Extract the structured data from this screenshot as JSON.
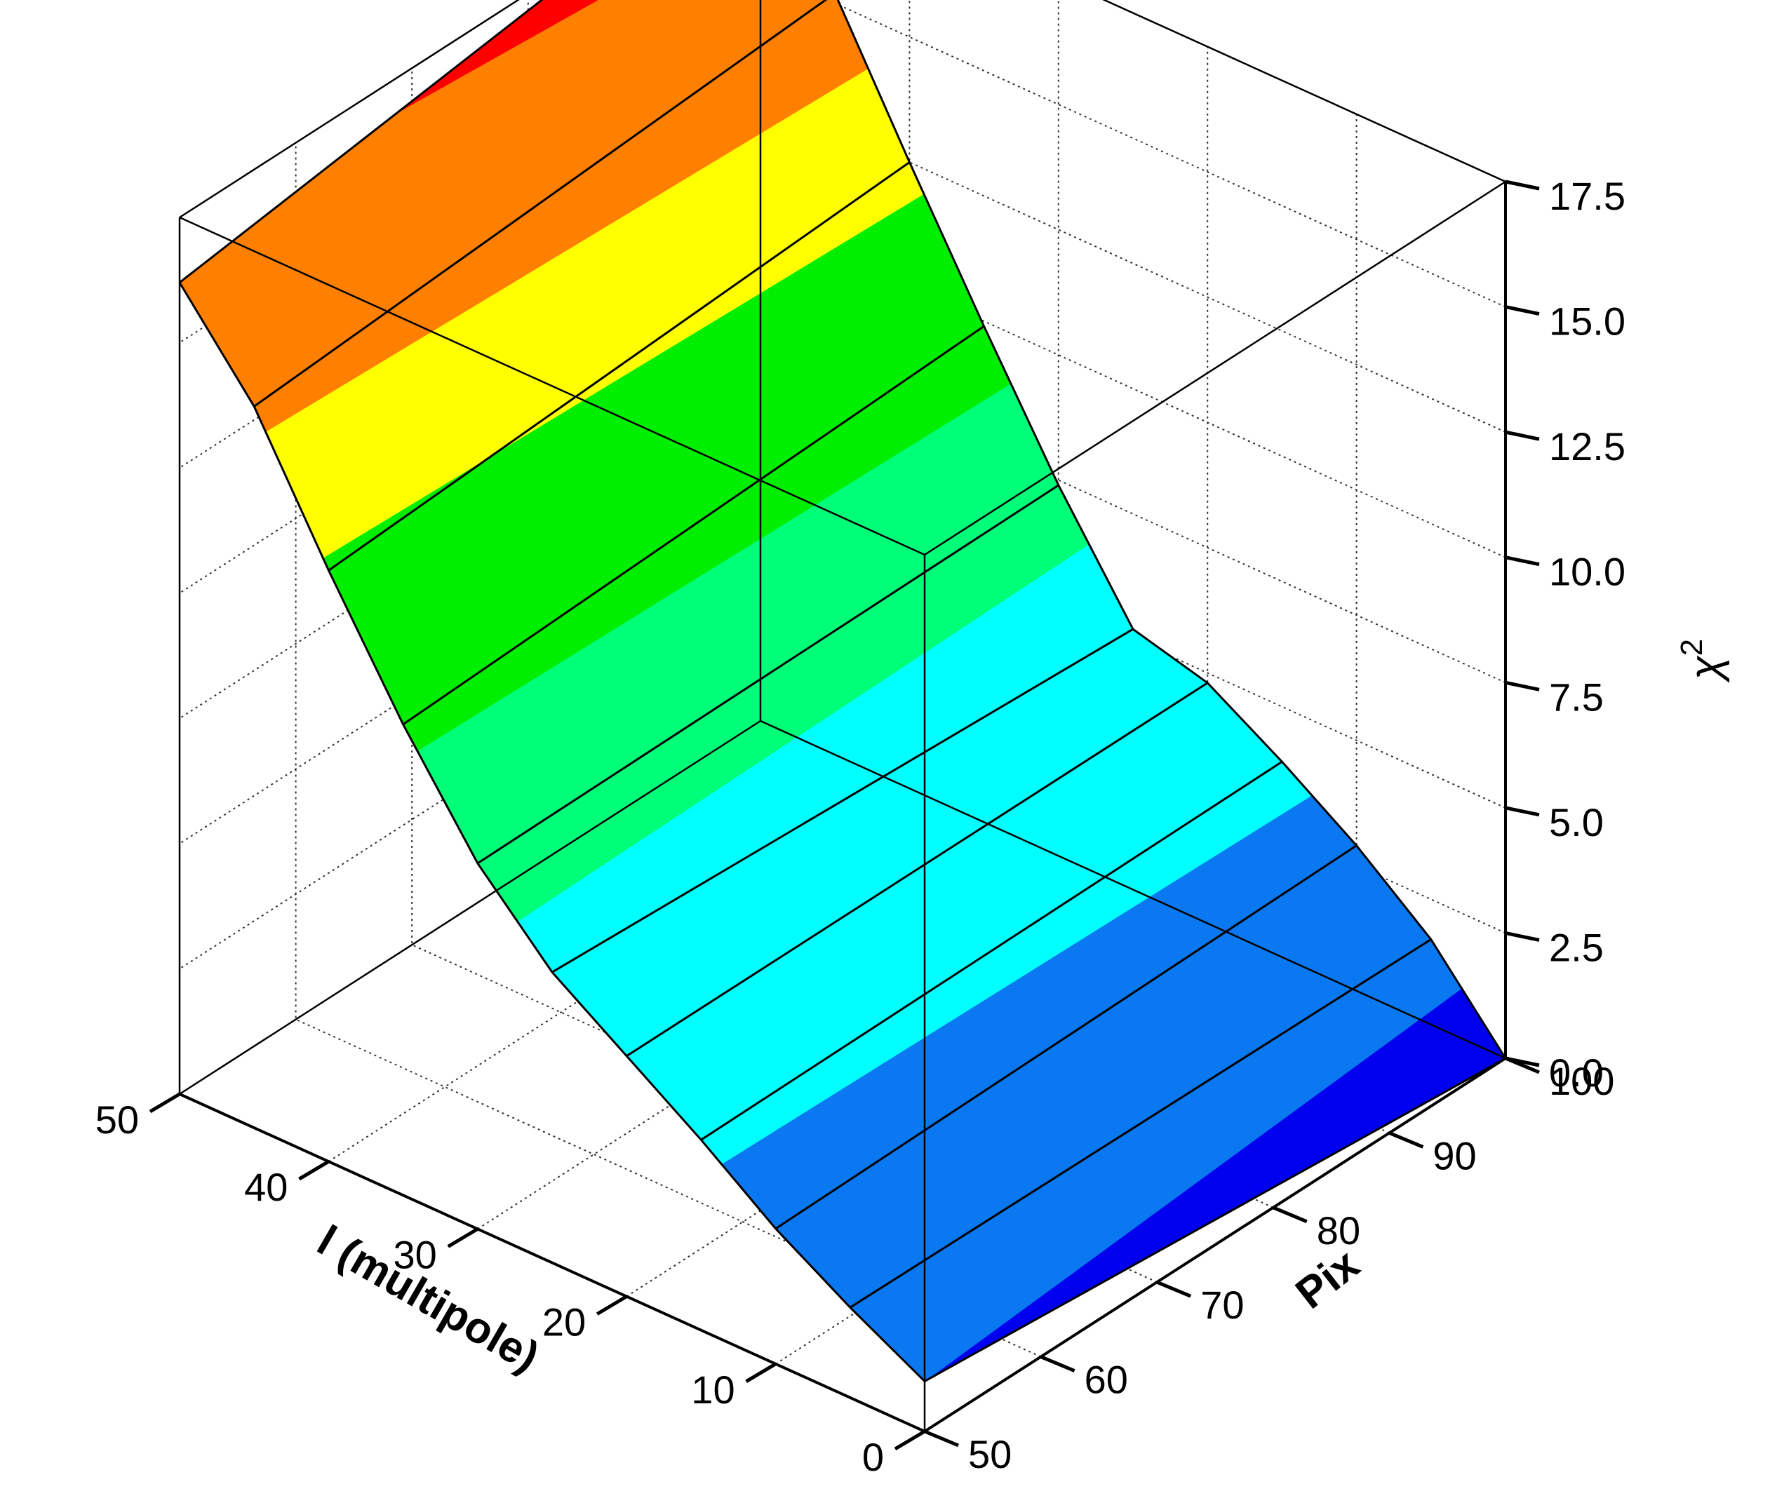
{
  "chart_data": {
    "type": "surface",
    "x": {
      "label": "l (multipole)",
      "ticks": [
        0,
        10,
        20,
        30,
        40,
        50
      ],
      "range": [
        0,
        50
      ]
    },
    "y": {
      "label": "Pix",
      "ticks": [
        50,
        60,
        70,
        80,
        90,
        100
      ],
      "range": [
        50,
        100
      ]
    },
    "z": {
      "label": "χ",
      "label_superscript": "2",
      "ticks": [
        "0.0",
        "2.5",
        "5.0",
        "7.5",
        "10.0",
        "12.5",
        "15.0",
        "17.5"
      ],
      "tick_values": [
        0,
        2.5,
        5,
        7.5,
        10,
        12.5,
        15,
        17.5
      ],
      "range": [
        0,
        17.5
      ]
    },
    "grid": true,
    "surface_x": [
      0,
      5,
      10,
      15,
      20,
      25,
      30,
      35,
      40,
      45,
      50
    ],
    "surface_y": [
      50,
      100
    ],
    "values_pix50": [
      1.0,
      1.8,
      2.7,
      3.8,
      4.8,
      5.8,
      7.3,
      9.4,
      11.8,
      14.4,
      16.2
    ],
    "values_pix100": [
      0.0,
      1.7,
      2.9,
      3.9,
      4.8,
      5.2,
      7.4,
      9.9,
      12.5,
      15.2,
      17.8
    ],
    "color_levels": [
      {
        "min": -1.0,
        "max": 1.0,
        "color": "#0000ee"
      },
      {
        "min": 1.0,
        "max": 3.5,
        "color": "#0a78f0"
      },
      {
        "min": 3.5,
        "max": 6.5,
        "color": "#00ffff"
      },
      {
        "min": 6.5,
        "max": 9.0,
        "color": "#00ff78"
      },
      {
        "min": 9.0,
        "max": 12.0,
        "color": "#00ee00"
      },
      {
        "min": 12.0,
        "max": 14.0,
        "color": "#ffff00"
      },
      {
        "min": 14.0,
        "max": 16.8,
        "color": "#ff8000"
      },
      {
        "min": 16.8,
        "max": 20.0,
        "color": "#ff0000"
      }
    ]
  }
}
